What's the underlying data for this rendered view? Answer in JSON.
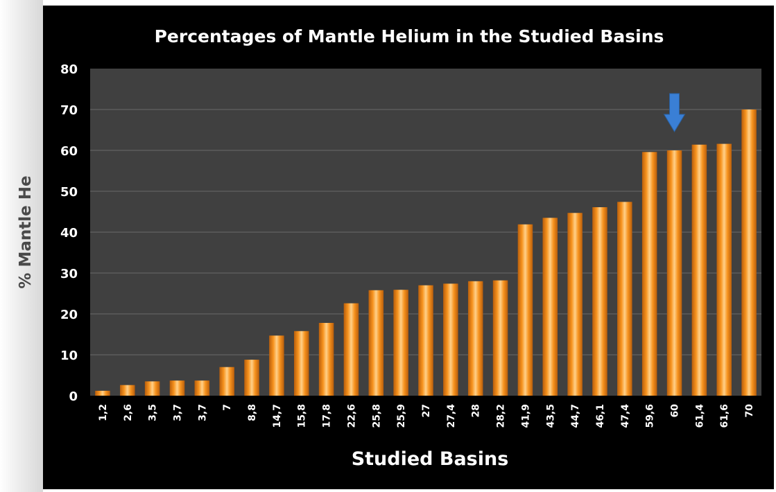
{
  "chart_data": {
    "type": "bar",
    "title": "Percentages of Mantle Helium in the Studied Basins",
    "xlabel": "Studied Basins",
    "ylabel": "% Mantle He",
    "ylim": [
      0,
      80
    ],
    "yticks": [
      "0",
      "10",
      "20",
      "30",
      "40",
      "50",
      "60",
      "70",
      "80"
    ],
    "grid": true,
    "categories": [
      "1,2",
      "2,6",
      "3,5",
      "3,7",
      "3,7",
      "7",
      "8,8",
      "14,7",
      "15,8",
      "17,8",
      "22,6",
      "25,8",
      "25,9",
      "27",
      "27,4",
      "28",
      "28,2",
      "41,9",
      "43,5",
      "44,7",
      "46,1",
      "47,4",
      "59,6",
      "60",
      "61,4",
      "61,6",
      "70"
    ],
    "values": [
      1.2,
      2.6,
      3.5,
      3.7,
      3.7,
      7,
      8.8,
      14.7,
      15.8,
      17.8,
      22.6,
      25.8,
      25.9,
      27,
      27.4,
      28,
      28.2,
      41.9,
      43.5,
      44.7,
      46.1,
      47.4,
      59.6,
      60,
      61.4,
      61.6,
      70
    ],
    "highlight_arrow_category": "60",
    "colors": {
      "frame": "#000000",
      "plot_area": "#404040",
      "gridline": "#6a6a6a",
      "bar": "#f7931e",
      "arrow": "#3a7fd5"
    }
  }
}
